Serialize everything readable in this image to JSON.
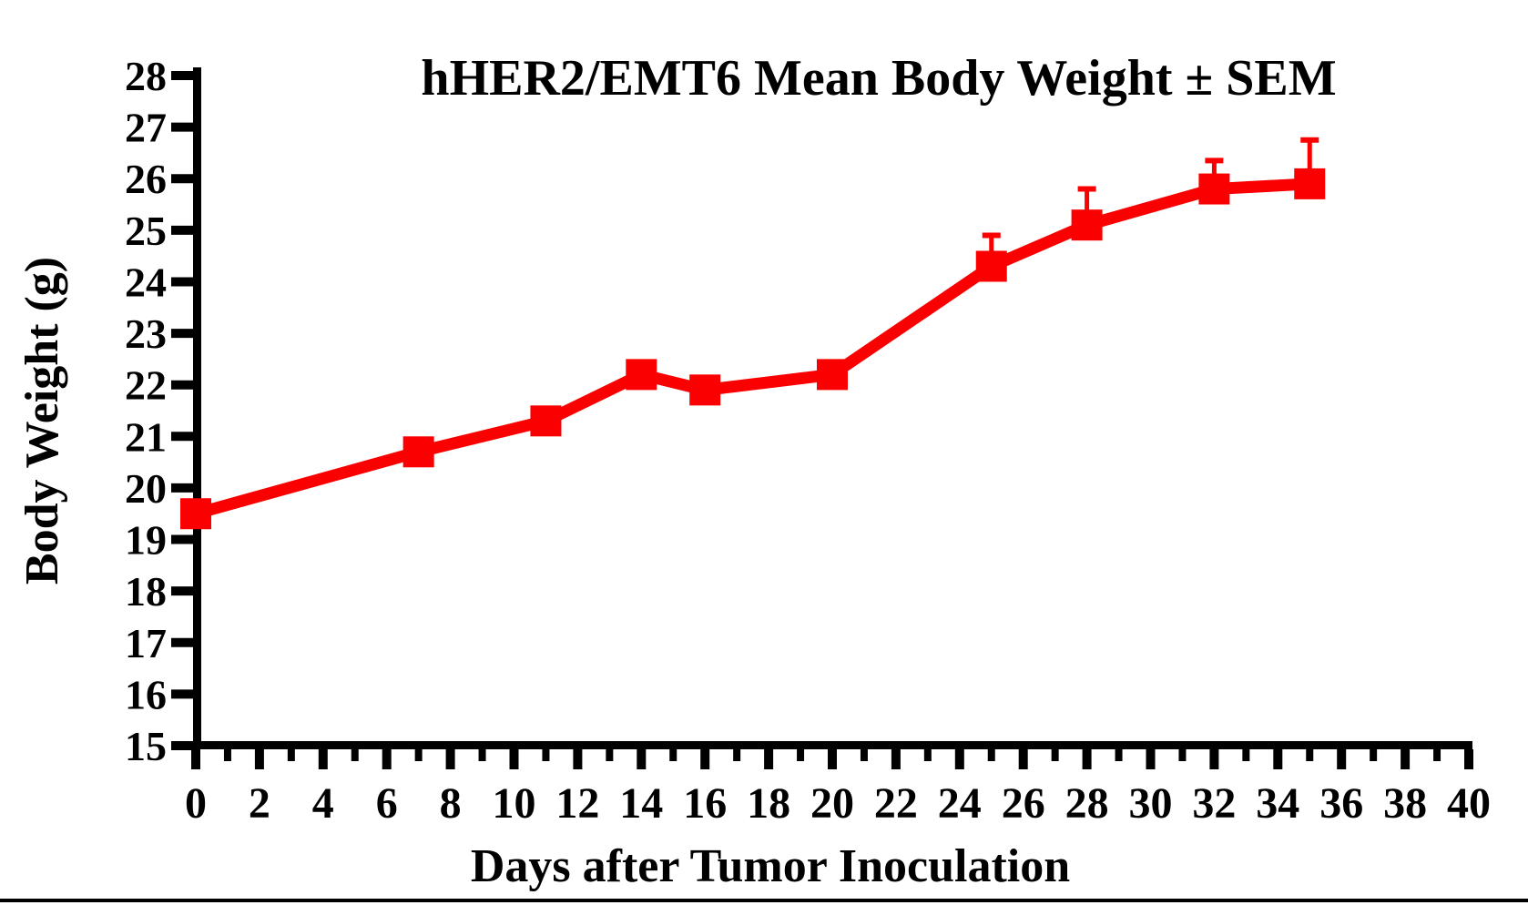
{
  "chart_data": {
    "type": "line",
    "title": "hHER2/EMT6 Mean Body Weight ± SEM",
    "xlabel": "Days after Tumor Inoculation",
    "ylabel": "Body Weight (g)",
    "x": [
      0,
      7,
      11,
      14,
      16,
      20,
      25,
      28,
      32,
      35
    ],
    "series": [
      {
        "name": "hHER2/EMT6 mean body weight",
        "values": [
          19.5,
          20.7,
          21.3,
          22.2,
          21.9,
          22.2,
          24.3,
          25.1,
          25.8,
          25.9
        ],
        "sem_upper": [
          0,
          0,
          0,
          0,
          0,
          0,
          0.6,
          0.7,
          0.55,
          0.85
        ]
      }
    ],
    "xlim": [
      0,
      40
    ],
    "ylim": [
      15,
      28
    ],
    "x_ticks": [
      0,
      2,
      4,
      6,
      8,
      10,
      12,
      14,
      16,
      18,
      20,
      22,
      24,
      26,
      28,
      30,
      32,
      34,
      36,
      38,
      40
    ],
    "x_minor_tick_step": 1,
    "y_ticks": [
      15,
      16,
      17,
      18,
      19,
      20,
      21,
      22,
      23,
      24,
      25,
      26,
      27,
      28
    ],
    "grid": false,
    "legend": "none",
    "marker": "square",
    "error_bars": "upper_sem_with_caps",
    "line_color": "#FA0000",
    "axis_color": "#000000",
    "background_color": "#FFFFFF"
  }
}
